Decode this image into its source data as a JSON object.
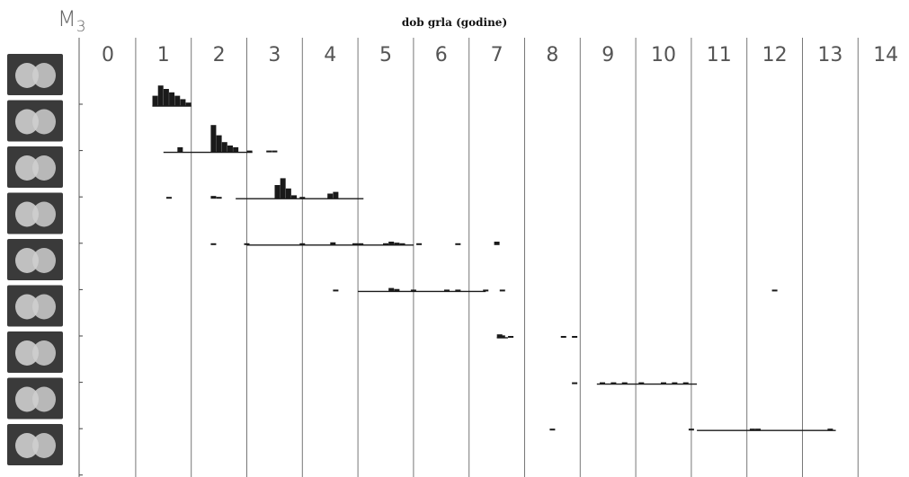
{
  "header": {
    "m3_letter": "M",
    "m3_sub": "3"
  },
  "chart_data": {
    "type": "bar",
    "title": "dob grla (godine)",
    "x_ticks": [
      "0",
      "1",
      "2",
      "3",
      "4",
      "5",
      "6",
      "7",
      "8",
      "9",
      "10",
      "11",
      "12",
      "13",
      "14"
    ],
    "xlim": [
      -0.5,
      14.5
    ],
    "stages": 9,
    "stage_images": [
      "tooth-stage-1",
      "tooth-stage-2",
      "tooth-stage-3",
      "tooth-stage-4",
      "tooth-stage-5",
      "tooth-stage-6",
      "tooth-stage-7",
      "tooth-stage-8",
      "tooth-stage-9"
    ],
    "colors": {
      "bars": "#1a1a1a",
      "grid": "#777777",
      "tooth_bg": "#3a3a3a"
    },
    "series": [
      {
        "stage": 1,
        "range": [
          0.8,
          1.5
        ],
        "bars": [
          [
            0.85,
            3
          ],
          [
            0.95,
            6
          ],
          [
            1.05,
            5
          ],
          [
            1.15,
            4
          ],
          [
            1.25,
            3
          ],
          [
            1.35,
            2
          ],
          [
            1.45,
            1
          ]
        ]
      },
      {
        "stage": 2,
        "range": [
          1.0,
          2.6
        ],
        "bars": [
          [
            1.3,
            1.5
          ],
          [
            1.9,
            8
          ],
          [
            2.0,
            5
          ],
          [
            2.1,
            3
          ],
          [
            2.2,
            2
          ],
          [
            2.3,
            1.5
          ],
          [
            2.55,
            0.5
          ],
          [
            2.9,
            0.5
          ],
          [
            3.0,
            0.5
          ]
        ]
      },
      {
        "stage": 3,
        "range": [
          2.3,
          4.6
        ],
        "bars": [
          [
            1.1,
            0.5
          ],
          [
            1.9,
            0.8
          ],
          [
            2.0,
            0.5
          ],
          [
            3.05,
            4
          ],
          [
            3.15,
            6
          ],
          [
            3.25,
            3
          ],
          [
            3.35,
            1
          ],
          [
            3.5,
            0.5
          ],
          [
            4.0,
            1.5
          ],
          [
            4.1,
            2
          ]
        ]
      },
      {
        "stage": 4,
        "range": [
          2.5,
          5.5
        ],
        "bars": [
          [
            1.9,
            0.5
          ],
          [
            2.5,
            0.3
          ],
          [
            3.5,
            0.3
          ],
          [
            4.05,
            0.8
          ],
          [
            4.45,
            0.5
          ],
          [
            4.55,
            0.5
          ],
          [
            5.0,
            0.5
          ],
          [
            5.1,
            1
          ],
          [
            5.2,
            0.7
          ],
          [
            5.3,
            0.5
          ],
          [
            5.6,
            0.5
          ],
          [
            6.3,
            0.3
          ],
          [
            7.0,
            1
          ]
        ]
      },
      {
        "stage": 5,
        "range": [
          4.5,
          6.8
        ],
        "bars": [
          [
            4.1,
            0.3
          ],
          [
            5.1,
            1
          ],
          [
            5.2,
            0.7
          ],
          [
            5.5,
            0.3
          ],
          [
            6.1,
            0.5
          ],
          [
            6.3,
            0.5
          ],
          [
            6.8,
            0.3
          ],
          [
            7.1,
            0.3
          ],
          [
            12.0,
            0.5
          ]
        ]
      },
      {
        "stage": 6,
        "range": [
          7.0,
          7.2
        ],
        "bars": [
          [
            7.05,
            1
          ],
          [
            7.1,
            0.7
          ],
          [
            7.25,
            0.3
          ],
          [
            8.2,
            0.3
          ],
          [
            8.4,
            0.3
          ]
        ]
      },
      {
        "stage": 7,
        "range": [
          8.8,
          10.6
        ],
        "bars": [
          [
            8.4,
            0.5
          ],
          [
            8.9,
            0.3
          ],
          [
            9.1,
            0.5
          ],
          [
            9.3,
            0.5
          ],
          [
            9.6,
            0.3
          ],
          [
            10.0,
            0.3
          ],
          [
            10.2,
            0.5
          ],
          [
            10.4,
            0.3
          ]
        ]
      },
      {
        "stage": 8,
        "range": [
          10.6,
          13.1
        ],
        "bars": [
          [
            8.0,
            0.5
          ],
          [
            10.5,
            0.5
          ],
          [
            11.6,
            0.5
          ],
          [
            11.7,
            0.5
          ],
          [
            13.0,
            0.5
          ]
        ]
      }
    ]
  }
}
